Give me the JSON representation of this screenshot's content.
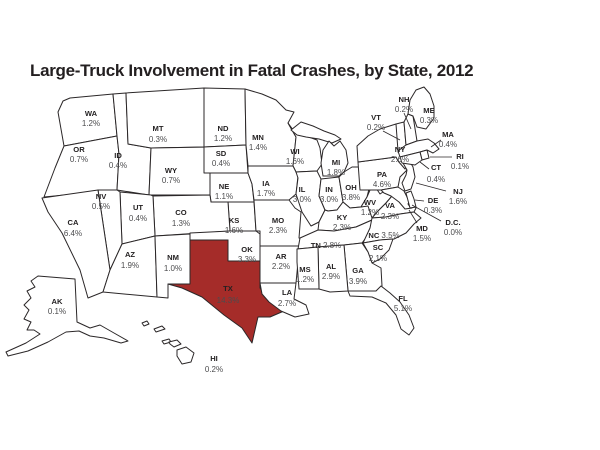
{
  "title": "Large-Truck Involvement in Fatal Crashes, by State, 2012",
  "map": {
    "highlight_color": "#A52C29",
    "state_fill": "#FFFFFF",
    "border_color": "#2B2728",
    "states": [
      {
        "abbr": "WA",
        "value": "1.2%"
      },
      {
        "abbr": "OR",
        "value": "0.7%"
      },
      {
        "abbr": "CA",
        "value": "6.4%"
      },
      {
        "abbr": "NV",
        "value": "0.5%"
      },
      {
        "abbr": "ID",
        "value": "0.4%"
      },
      {
        "abbr": "UT",
        "value": "0.4%"
      },
      {
        "abbr": "AZ",
        "value": "1.9%"
      },
      {
        "abbr": "MT",
        "value": "0.3%"
      },
      {
        "abbr": "WY",
        "value": "0.7%"
      },
      {
        "abbr": "CO",
        "value": "1.3%"
      },
      {
        "abbr": "NM",
        "value": "1.0%"
      },
      {
        "abbr": "ND",
        "value": "1.2%"
      },
      {
        "abbr": "SD",
        "value": "0.4%"
      },
      {
        "abbr": "NE",
        "value": "1.1%"
      },
      {
        "abbr": "KS",
        "value": "1.6%"
      },
      {
        "abbr": "OK",
        "value": "3.3%"
      },
      {
        "abbr": "TX",
        "value": "14.3%",
        "highlighted": true
      },
      {
        "abbr": "MN",
        "value": "1.4%"
      },
      {
        "abbr": "IA",
        "value": "1.7%"
      },
      {
        "abbr": "MO",
        "value": "2.3%"
      },
      {
        "abbr": "AR",
        "value": "2.2%"
      },
      {
        "abbr": "LA",
        "value": "2.7%"
      },
      {
        "abbr": "WI",
        "value": "1.6%"
      },
      {
        "abbr": "IL",
        "value": "3.0%"
      },
      {
        "abbr": "IN",
        "value": "3.0%"
      },
      {
        "abbr": "MI",
        "value": "1.8%"
      },
      {
        "abbr": "OH",
        "value": "3.8%"
      },
      {
        "abbr": "KY",
        "value": "2.3%"
      },
      {
        "abbr": "TN",
        "value": "2.8%",
        "inline": true
      },
      {
        "abbr": "MS",
        "value": "1.2%"
      },
      {
        "abbr": "AL",
        "value": "2.9%"
      },
      {
        "abbr": "GA",
        "value": "3.9%"
      },
      {
        "abbr": "FL",
        "value": "5.1%"
      },
      {
        "abbr": "SC",
        "value": "2.1%"
      },
      {
        "abbr": "NC",
        "value": "3.5%",
        "inline": true
      },
      {
        "abbr": "VA",
        "value": "2.3%"
      },
      {
        "abbr": "WV",
        "value": "1.2%"
      },
      {
        "abbr": "PA",
        "value": "4.6%"
      },
      {
        "abbr": "NY",
        "value": "2.6%"
      },
      {
        "abbr": "VT",
        "value": "0.2%"
      },
      {
        "abbr": "NH",
        "value": "0.2%"
      },
      {
        "abbr": "ME",
        "value": "0.3%"
      },
      {
        "abbr": "MA",
        "value": "0.4%"
      },
      {
        "abbr": "RI",
        "value": "0.1%"
      },
      {
        "abbr": "CT",
        "value": "0.4%"
      },
      {
        "abbr": "NJ",
        "value": "1.6%"
      },
      {
        "abbr": "DE",
        "value": "0.3%"
      },
      {
        "abbr": "MD",
        "value": "1.5%"
      },
      {
        "abbr": "D.C.",
        "value": "0.0%"
      },
      {
        "abbr": "AK",
        "value": "0.1%"
      },
      {
        "abbr": "HI",
        "value": "0.2%"
      }
    ]
  },
  "chart_data": {
    "type": "heatmap",
    "title": "Large-Truck Involvement in Fatal Crashes, by State, 2012",
    "unit": "percent",
    "categories": [
      "WA",
      "OR",
      "CA",
      "NV",
      "ID",
      "UT",
      "AZ",
      "MT",
      "WY",
      "CO",
      "NM",
      "ND",
      "SD",
      "NE",
      "KS",
      "OK",
      "TX",
      "MN",
      "IA",
      "MO",
      "AR",
      "LA",
      "WI",
      "IL",
      "IN",
      "MI",
      "OH",
      "KY",
      "TN",
      "MS",
      "AL",
      "GA",
      "FL",
      "SC",
      "NC",
      "VA",
      "WV",
      "PA",
      "NY",
      "VT",
      "NH",
      "ME",
      "MA",
      "RI",
      "CT",
      "NJ",
      "DE",
      "MD",
      "D.C.",
      "AK",
      "HI"
    ],
    "values": [
      1.2,
      0.7,
      6.4,
      0.5,
      0.4,
      0.4,
      1.9,
      0.3,
      0.7,
      1.3,
      1.0,
      1.2,
      0.4,
      1.1,
      1.6,
      3.3,
      14.3,
      1.4,
      1.7,
      2.3,
      2.2,
      2.7,
      1.6,
      3.0,
      3.0,
      1.8,
      3.8,
      2.3,
      2.8,
      1.2,
      2.9,
      3.9,
      5.1,
      2.1,
      3.5,
      2.3,
      1.2,
      4.6,
      2.6,
      0.2,
      0.2,
      0.3,
      0.4,
      0.1,
      0.4,
      1.6,
      0.3,
      1.5,
      0.0,
      0.1,
      0.2
    ],
    "highlighted_category": "TX",
    "notes": "US choropleth-style map; only Texas shaded red, all other states white"
  }
}
